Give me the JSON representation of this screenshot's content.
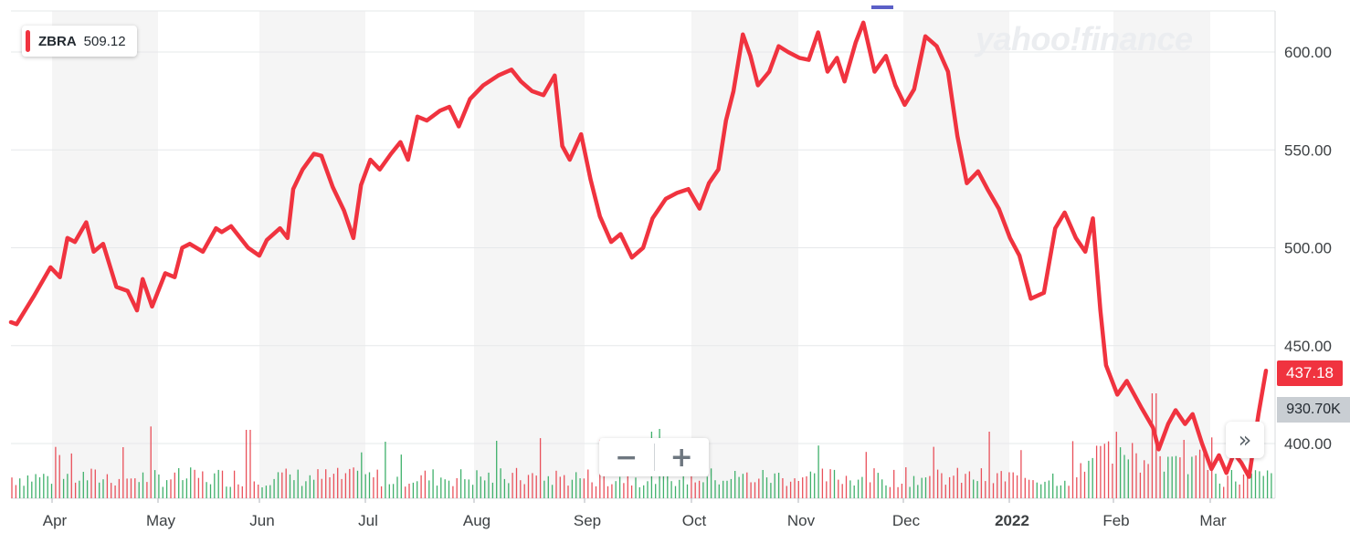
{
  "chart_data": {
    "type": "line",
    "ticker": "ZBRA",
    "start_price_label": "509.12",
    "last_price_label": "437.18",
    "last_volume_label": "930.70K",
    "x_labels": [
      "Apr",
      "May",
      "Jun",
      "Jul",
      "Aug",
      "Sep",
      "Oct",
      "Nov",
      "Dec",
      "2022",
      "Feb",
      "Mar"
    ],
    "y_ticks": [
      "400.00",
      "450.00",
      "500.00",
      "550.00",
      "600.00"
    ],
    "ylim": [
      373,
      625
    ],
    "series": [
      {
        "name": "ZBRA",
        "color": "#f0333f",
        "points": [
          [
            0,
            462
          ],
          [
            0.3,
            461
          ],
          [
            1.2,
            475
          ],
          [
            2.1,
            490
          ],
          [
            2.6,
            485
          ],
          [
            3.0,
            505
          ],
          [
            3.4,
            503
          ],
          [
            4.0,
            513
          ],
          [
            4.4,
            498
          ],
          [
            4.9,
            502
          ],
          [
            5.6,
            480
          ],
          [
            6.2,
            478
          ],
          [
            6.7,
            468
          ],
          [
            7.0,
            484
          ],
          [
            7.5,
            470
          ],
          [
            8.2,
            487
          ],
          [
            8.7,
            485
          ],
          [
            9.1,
            500
          ],
          [
            9.5,
            502
          ],
          [
            10.2,
            498
          ],
          [
            10.9,
            510
          ],
          [
            11.2,
            508
          ],
          [
            11.7,
            511
          ],
          [
            12.6,
            500
          ],
          [
            13.2,
            496
          ],
          [
            13.6,
            504
          ],
          [
            14.3,
            510
          ],
          [
            14.7,
            505
          ],
          [
            15.0,
            530
          ],
          [
            15.5,
            540
          ],
          [
            16.1,
            548
          ],
          [
            16.5,
            547
          ],
          [
            17.1,
            531
          ],
          [
            17.7,
            519
          ],
          [
            18.2,
            505
          ],
          [
            18.6,
            532
          ],
          [
            19.1,
            545
          ],
          [
            19.6,
            540
          ],
          [
            20.2,
            548
          ],
          [
            20.7,
            554
          ],
          [
            21.1,
            545
          ],
          [
            21.6,
            567
          ],
          [
            22.1,
            565
          ],
          [
            22.8,
            570
          ],
          [
            23.3,
            572
          ],
          [
            23.8,
            562
          ],
          [
            24.4,
            576
          ],
          [
            25.1,
            583
          ],
          [
            25.9,
            588
          ],
          [
            26.6,
            591
          ],
          [
            27.1,
            585
          ],
          [
            27.7,
            580
          ],
          [
            28.3,
            578
          ],
          [
            28.9,
            588
          ],
          [
            29.3,
            552
          ],
          [
            29.7,
            545
          ],
          [
            30.3,
            558
          ],
          [
            30.8,
            535
          ],
          [
            31.3,
            516
          ],
          [
            31.9,
            503
          ],
          [
            32.4,
            507
          ],
          [
            33.0,
            495
          ],
          [
            33.6,
            500
          ],
          [
            34.1,
            515
          ],
          [
            34.8,
            525
          ],
          [
            35.4,
            528
          ],
          [
            36.0,
            530
          ],
          [
            36.6,
            520
          ],
          [
            37.1,
            533
          ],
          [
            37.6,
            540
          ],
          [
            38.0,
            565
          ],
          [
            38.4,
            580
          ],
          [
            38.9,
            609
          ],
          [
            39.3,
            598
          ],
          [
            39.7,
            583
          ],
          [
            40.3,
            590
          ],
          [
            40.8,
            603
          ],
          [
            41.3,
            600
          ],
          [
            41.9,
            597
          ],
          [
            42.4,
            596
          ],
          [
            42.9,
            610
          ],
          [
            43.4,
            590
          ],
          [
            43.9,
            597
          ],
          [
            44.3,
            585
          ],
          [
            44.9,
            605
          ],
          [
            45.3,
            615
          ],
          [
            45.9,
            590
          ],
          [
            46.5,
            598
          ],
          [
            47.0,
            583
          ],
          [
            47.5,
            573
          ],
          [
            48.0,
            581
          ],
          [
            48.6,
            608
          ],
          [
            49.2,
            603
          ],
          [
            49.8,
            590
          ],
          [
            50.3,
            557
          ],
          [
            50.8,
            533
          ],
          [
            51.4,
            539
          ],
          [
            51.9,
            530
          ],
          [
            52.5,
            520
          ],
          [
            53.1,
            505
          ],
          [
            53.6,
            496
          ],
          [
            54.2,
            474
          ],
          [
            54.9,
            477
          ],
          [
            55.5,
            510
          ],
          [
            56.0,
            518
          ],
          [
            56.6,
            505
          ],
          [
            57.1,
            498
          ],
          [
            57.5,
            515
          ],
          [
            57.9,
            468
          ],
          [
            58.2,
            440
          ],
          [
            58.8,
            425
          ],
          [
            59.3,
            432
          ],
          [
            59.7,
            425
          ],
          [
            60.1,
            418
          ],
          [
            60.7,
            408
          ],
          [
            61.0,
            397
          ],
          [
            61.5,
            410
          ],
          [
            61.9,
            417
          ],
          [
            62.4,
            410
          ],
          [
            62.8,
            415
          ],
          [
            63.3,
            400
          ],
          [
            63.8,
            387
          ],
          [
            64.2,
            394
          ],
          [
            64.6,
            385
          ],
          [
            65.0,
            395
          ],
          [
            65.4,
            390
          ],
          [
            65.8,
            383
          ],
          [
            66.3,
            415
          ],
          [
            66.7,
            437.18
          ]
        ]
      }
    ],
    "volume_series_name": "Volume",
    "legend_position": "top-left",
    "grid": "horizontal lines with alternating vertical month bands",
    "watermark": "yahoo!finance",
    "colors": {
      "price_line": "#f0333f",
      "volume_up": "#3fb06b",
      "volume_down": "#e9505a",
      "band": "#f5f5f5",
      "grid": "#e6e8ea",
      "axis_text": "#3c4043",
      "price_tag": "#f0333f",
      "volume_tag": "#c9ced3"
    }
  },
  "controls": {
    "zoom_out_label": "−",
    "zoom_in_label": "+",
    "expand_label": "»"
  }
}
